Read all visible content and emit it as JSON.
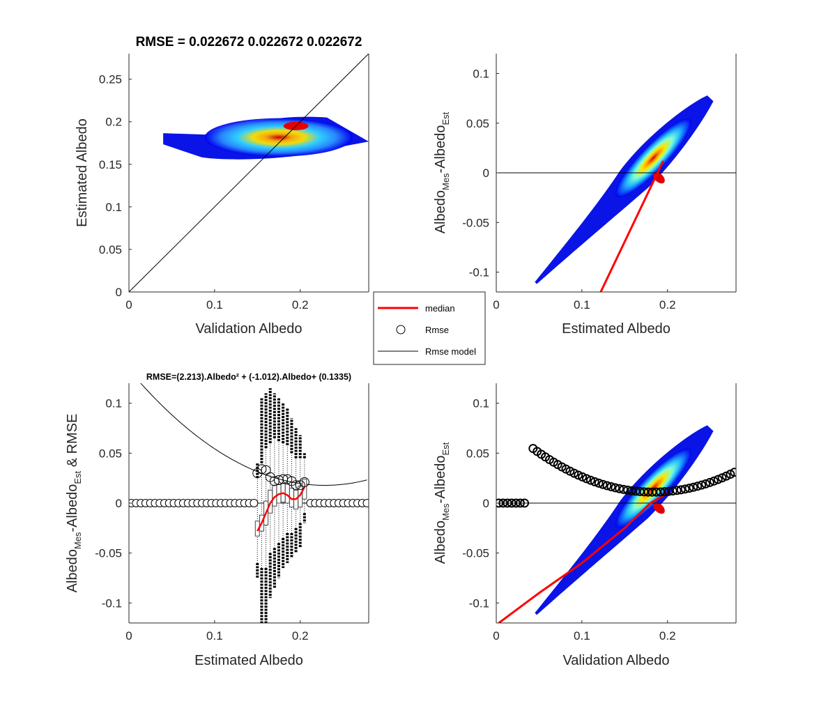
{
  "chart_data": [
    {
      "type": "heatmap",
      "panel": "top-left",
      "title": "RMSE = 0.022672     0.022672     0.022672",
      "xlabel": "Validation Albedo",
      "ylabel": "Estimated Albedo",
      "xlim": [
        0,
        0.28
      ],
      "ylim": [
        0,
        0.28
      ],
      "xticks": [
        "0",
        "0.1",
        "0.2"
      ],
      "yticks": [
        "0",
        "0.05",
        "0.1",
        "0.15",
        "0.2",
        "0.25"
      ],
      "density_blob": {
        "x_range": [
          0.04,
          0.28
        ],
        "y_range": [
          0.155,
          0.205
        ],
        "peak": [
          0.195,
          0.195
        ]
      },
      "reference_line": {
        "name": "1:1",
        "x": [
          0,
          0.28
        ],
        "y": [
          0,
          0.28
        ]
      }
    },
    {
      "type": "heatmap",
      "panel": "top-right",
      "xlabel": "Estimated Albedo",
      "ylabel": {
        "main": "Albedo",
        "sub1": "Mes",
        "mid": "-Albedo",
        "sub2": "Est"
      },
      "xlim": [
        0,
        0.28
      ],
      "ylim": [
        -0.12,
        0.12
      ],
      "xticks": [
        "0",
        "0.1",
        "0.2"
      ],
      "yticks": [
        "-0.1",
        "-0.05",
        "0",
        "0.05",
        "0.1"
      ],
      "density_blob": {
        "from": [
          0.045,
          -0.11
        ],
        "to": [
          0.25,
          0.075
        ],
        "peak": [
          0.19,
          -0.005
        ]
      },
      "median_line": {
        "x": [
          0.122,
          0.195
        ],
        "y": [
          -0.12,
          0.012
        ]
      },
      "zero_line": 0
    },
    {
      "type": "scatter",
      "panel": "bottom-left",
      "title": "RMSE=(2.213).Albedo² + (-1.012).Albedo+ (0.1335)",
      "xlabel": "Estimated Albedo",
      "ylabel": {
        "main": "Albedo",
        "sub1": "Mes",
        "mid": "-Albedo",
        "sub2": "Est",
        "suffix": " & RMSE"
      },
      "xlim": [
        0,
        0.28
      ],
      "ylim": [
        -0.12,
        0.12
      ],
      "xticks": [
        "0",
        "0.1",
        "0.2"
      ],
      "yticks": [
        "-0.1",
        "-0.05",
        "0",
        "0.05",
        "0.1"
      ],
      "rmse_model": {
        "a": 2.213,
        "b": -1.012,
        "c": 0.1335
      },
      "rmse_points": {
        "x": [
          0.15,
          0.155,
          0.16,
          0.165,
          0.17,
          0.175,
          0.18,
          0.185,
          0.19,
          0.195,
          0.2,
          0.205
        ],
        "y": [
          0.03,
          0.034,
          0.033,
          0.026,
          0.022,
          0.023,
          0.024,
          0.024,
          0.022,
          0.018,
          0.018,
          0.021
        ]
      },
      "zero_circles": {
        "x_from": 0.003,
        "x_to": 0.278,
        "step": 0.0055
      },
      "median": {
        "x": [
          0.15,
          0.155,
          0.16,
          0.165,
          0.17,
          0.175,
          0.18,
          0.185,
          0.19,
          0.195,
          0.2,
          0.205
        ],
        "y": [
          -0.028,
          -0.02,
          -0.01,
          0.0,
          0.006,
          0.009,
          0.01,
          0.008,
          0.004,
          0.004,
          0.008,
          0.016
        ]
      },
      "boxes": {
        "x": [
          0.15,
          0.155,
          0.16,
          0.165,
          0.17,
          0.175,
          0.18,
          0.185,
          0.19,
          0.195,
          0.2,
          0.205
        ],
        "q1": [
          -0.033,
          -0.028,
          -0.022,
          -0.01,
          -0.003,
          0.0,
          0.001,
          0.0,
          -0.004,
          -0.006,
          -0.004,
          0.004
        ],
        "q3": [
          -0.018,
          -0.012,
          0.002,
          0.013,
          0.018,
          0.019,
          0.02,
          0.019,
          0.015,
          0.013,
          0.017,
          0.024
        ],
        "whisker_lo": [
          -0.06,
          -0.065,
          -0.065,
          -0.05,
          -0.045,
          -0.04,
          -0.035,
          -0.03,
          -0.03,
          -0.025,
          -0.02,
          -0.01
        ],
        "whisker_hi": [
          0.025,
          0.04,
          0.055,
          0.06,
          0.065,
          0.062,
          0.06,
          0.058,
          0.05,
          0.045,
          0.045,
          0.045
        ],
        "out_lo": [
          -0.075,
          -0.12,
          -0.12,
          -0.095,
          -0.085,
          -0.075,
          -0.065,
          -0.06,
          -0.055,
          -0.05,
          -0.045,
          -0.02
        ],
        "out_hi": [
          0.04,
          0.105,
          0.11,
          0.115,
          0.11,
          0.105,
          0.1,
          0.095,
          0.085,
          0.075,
          0.068,
          0.05
        ]
      }
    },
    {
      "type": "heatmap",
      "panel": "bottom-right",
      "xlabel": "Validation Albedo",
      "ylabel": {
        "main": "Albedo",
        "sub1": "Mes",
        "mid": "-Albedo",
        "sub2": "Est"
      },
      "xlim": [
        0,
        0.28
      ],
      "ylim": [
        -0.12,
        0.12
      ],
      "xticks": [
        "0",
        "0.1",
        "0.2"
      ],
      "yticks": [
        "-0.1",
        "-0.05",
        "0",
        "0.05",
        "0.1"
      ],
      "density_blob": {
        "from": [
          0.045,
          -0.11
        ],
        "to": [
          0.25,
          0.075
        ],
        "peak": [
          0.19,
          -0.005
        ]
      },
      "median_line": {
        "x": [
          0.003,
          0.05,
          0.1,
          0.15,
          0.18,
          0.2
        ],
        "y": [
          -0.12,
          -0.09,
          -0.06,
          -0.025,
          0.0,
          0.01
        ]
      },
      "rmse_circles": {
        "x_from": 0.043,
        "x_to": 0.28,
        "step": 0.0048,
        "model": {
          "a": 2.213,
          "b": -0.812,
          "c": 0.0855
        }
      },
      "zero_circles": {
        "x": [
          0.003,
          0.008,
          0.013,
          0.018,
          0.023,
          0.028,
          0.033
        ],
        "y": 0
      },
      "zero_line": 0
    }
  ],
  "legend": {
    "items": [
      {
        "label": "median",
        "color": "#ff0000"
      },
      {
        "label": "Rmse",
        "marker": "circle"
      },
      {
        "label": "Rmse model",
        "color": "#000000"
      }
    ]
  }
}
